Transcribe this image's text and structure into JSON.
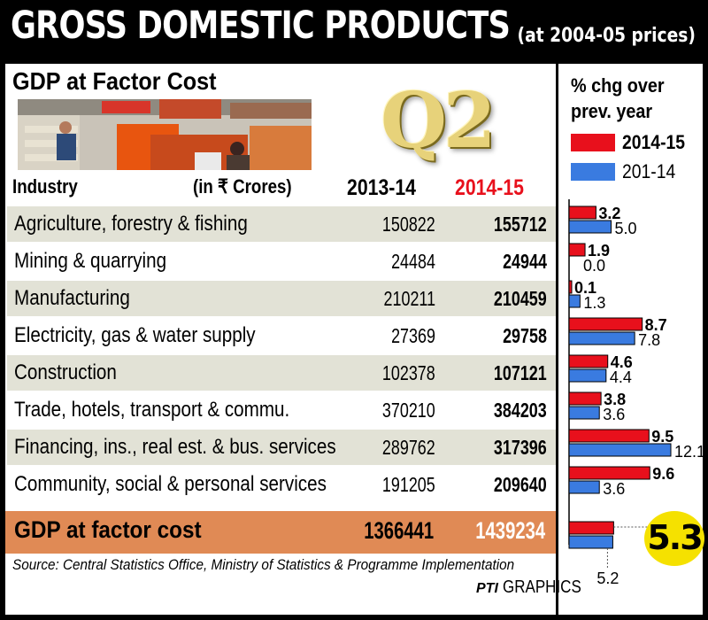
{
  "header": {
    "title": "GROSS DOMESTIC PRODUCTS",
    "subtitle": "(at 2004-05 prices)"
  },
  "section_title": "GDP at Factor Cost",
  "quarter_badge": "Q2",
  "table": {
    "col_industry": "Industry",
    "col_unit": "(in ₹ Crores)",
    "col_year1": "2013-14",
    "col_year2": "2014-15",
    "rows": [
      {
        "industry": "Agriculture, forestry & fishing",
        "v2013": "150822",
        "v2014": "155712"
      },
      {
        "industry": "Mining & quarrying",
        "v2013": "24484",
        "v2014": "24944"
      },
      {
        "industry": "Manufacturing",
        "v2013": "210211",
        "v2014": "210459"
      },
      {
        "industry": "Electricity, gas & water supply",
        "v2013": "27369",
        "v2014": "29758"
      },
      {
        "industry": "Construction",
        "v2013": "102378",
        "v2014": "107121"
      },
      {
        "industry": "Trade, hotels, transport & commu.",
        "v2013": "370210",
        "v2014": "384203"
      },
      {
        "industry": "Financing, ins., real est. & bus. services",
        "v2013": "289762",
        "v2014": "317396"
      },
      {
        "industry": "Community, social & personal services",
        "v2013": "191205",
        "v2014": "209640"
      }
    ],
    "total": {
      "industry": "GDP at factor cost",
      "v2013": "1366441",
      "v2014": "1439234"
    }
  },
  "legend": {
    "title_line1": "% chg over",
    "title_line2": "prev. year",
    "items": [
      {
        "label": "2014-15",
        "color": "#e8101c"
      },
      {
        "label": "201-14",
        "color": "#3a7be0"
      }
    ]
  },
  "chart_data": {
    "type": "bar",
    "orientation": "horizontal",
    "categories": [
      "Agriculture, forestry & fishing",
      "Mining & quarrying",
      "Manufacturing",
      "Electricity, gas & water supply",
      "Construction",
      "Trade, hotels, transport & commu.",
      "Financing, ins., real est. & bus. services",
      "Community, social & personal services",
      "GDP at factor cost"
    ],
    "series": [
      {
        "name": "2014-15",
        "color": "#e8101c",
        "values": [
          3.2,
          1.9,
          0.1,
          8.7,
          4.6,
          3.8,
          9.5,
          9.6,
          5.3
        ]
      },
      {
        "name": "201-14",
        "color": "#3a7be0",
        "values": [
          5.0,
          0.0,
          1.3,
          7.8,
          4.4,
          3.6,
          12.1,
          3.6,
          5.2
        ]
      }
    ],
    "labels": {
      "s2014": [
        "3.2",
        "1.9",
        "0.1",
        "8.7",
        "4.6",
        "3.8",
        "9.5",
        "9.6",
        ""
      ],
      "s2013": [
        "5.0",
        "0.0",
        "1.3",
        "7.8",
        "4.4",
        "3.6",
        "12.1",
        "3.6",
        "5.2"
      ]
    },
    "xlim": [
      0,
      12.1
    ],
    "legend_position": "top"
  },
  "highlight_badge": "5.3",
  "source": "Source: Central Statistics Office, Ministry of Statistics & Programme Implementation",
  "credit": {
    "agency": "PTI",
    "label": "GRAPHICS"
  }
}
